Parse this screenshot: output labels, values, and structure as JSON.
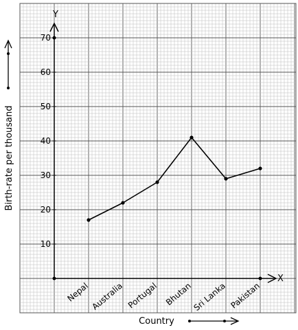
{
  "chart_data": {
    "type": "line",
    "title": "",
    "xlabel": "Country",
    "ylabel": "Birth-rate per thousand",
    "x_axis_letter": "X",
    "y_axis_letter": "Y",
    "origin_label": "",
    "categories": [
      "Nepal",
      "Australia",
      "Portugal",
      "Bhutan",
      "Sri Lanka",
      "Pakistan"
    ],
    "series": [
      {
        "values": [
          17,
          22,
          28,
          41,
          29,
          32
        ]
      }
    ],
    "yticks": [
      "10",
      "20",
      "30",
      "40",
      "50",
      "60",
      "70"
    ],
    "ylim": [
      0,
      70
    ],
    "grid": true,
    "background": "graph-paper",
    "line_color": "#000000",
    "grid_major_color": "#555555",
    "grid_minor_color": "#bdbdbd"
  }
}
